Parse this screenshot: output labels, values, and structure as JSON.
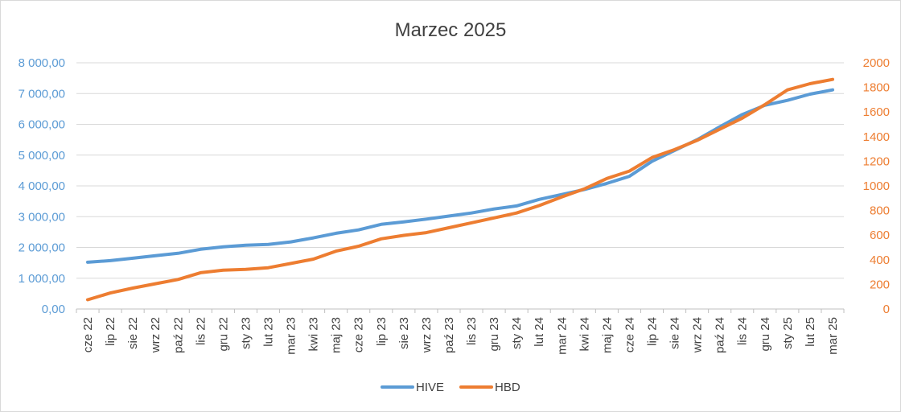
{
  "chart_data": {
    "type": "line",
    "title": "Marzec 2025",
    "categories": [
      "cze 22",
      "lip 22",
      "sie 22",
      "wrz 22",
      "paź 22",
      "lis 22",
      "gru 22",
      "sty 23",
      "lut 23",
      "mar 23",
      "kwi 23",
      "maj 23",
      "cze 23",
      "lip 23",
      "sie 23",
      "wrz 23",
      "paź 23",
      "lis 23",
      "gru 23",
      "sty 24",
      "lut 24",
      "mar 24",
      "kwi 24",
      "maj 24",
      "cze 24",
      "lip 24",
      "sie 24",
      "wrz 24",
      "paź 24",
      "lis 24",
      "gru 24",
      "sty 25",
      "lut 25",
      "mar 25"
    ],
    "y_left": {
      "ylim": [
        0,
        8000
      ],
      "ticks": [
        0,
        1000,
        2000,
        3000,
        4000,
        5000,
        6000,
        7000,
        8000
      ],
      "tick_labels": [
        "0,00",
        "1 000,00",
        "2 000,00",
        "3 000,00",
        "4 000,00",
        "5 000,00",
        "6 000,00",
        "7 000,00",
        "8 000,00"
      ],
      "color": "#5b9bd5"
    },
    "y_right": {
      "ylim": [
        0,
        2000
      ],
      "ticks": [
        0,
        200,
        400,
        600,
        800,
        1000,
        1200,
        1400,
        1600,
        1800,
        2000
      ],
      "tick_labels": [
        "0",
        "200",
        "400",
        "600",
        "800",
        "1000",
        "1200",
        "1400",
        "1600",
        "1800",
        "2000"
      ],
      "color": "#ed7d31"
    },
    "grid": true,
    "legend": "bottom",
    "series": [
      {
        "name": "HIVE",
        "axis": "left",
        "color": "#5b9bd5",
        "values": [
          1520,
          1570,
          1650,
          1730,
          1810,
          1940,
          2020,
          2070,
          2100,
          2180,
          2310,
          2460,
          2570,
          2750,
          2830,
          2920,
          3020,
          3120,
          3250,
          3350,
          3560,
          3720,
          3880,
          4080,
          4310,
          4800,
          5150,
          5500,
          5920,
          6320,
          6620,
          6780,
          6980,
          7120
        ]
      },
      {
        "name": "HBD",
        "axis": "right",
        "color": "#ed7d31",
        "values": [
          75,
          130,
          170,
          205,
          240,
          295,
          315,
          322,
          335,
          370,
          405,
          470,
          510,
          570,
          598,
          620,
          660,
          700,
          740,
          780,
          840,
          910,
          975,
          1060,
          1120,
          1230,
          1295,
          1370,
          1460,
          1550,
          1660,
          1780,
          1830,
          1865
        ]
      }
    ]
  }
}
